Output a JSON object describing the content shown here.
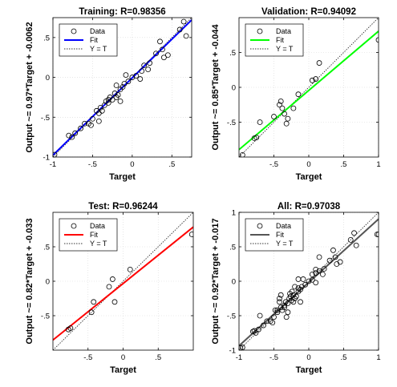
{
  "chart_data": [
    {
      "type": "scatter",
      "title": "Training: R=0.98356",
      "xlabel": "Target",
      "ylabel": "Output ~= 0.97*Target + -0.0062",
      "xlim": [
        -1,
        0.75
      ],
      "ylim": [
        -1,
        0.75
      ],
      "xticks": [
        -1,
        -0.5,
        0,
        0.5
      ],
      "yticks": [
        -1,
        -0.5,
        0,
        0.5
      ],
      "fit": {
        "slope": 0.97,
        "intercept": -0.0062,
        "color": "#0000ff"
      },
      "legend": {
        "position": "top-left",
        "entries": [
          "Data",
          "Fit",
          "Y = T"
        ]
      },
      "points": [
        [
          -0.98,
          -0.97
        ],
        [
          -0.8,
          -0.73
        ],
        [
          -0.76,
          -0.75
        ],
        [
          -0.72,
          -0.7
        ],
        [
          -0.65,
          -0.64
        ],
        [
          -0.6,
          -0.58
        ],
        [
          -0.55,
          -0.58
        ],
        [
          -0.52,
          -0.6
        ],
        [
          -0.5,
          -0.52
        ],
        [
          -0.45,
          -0.42
        ],
        [
          -0.42,
          -0.45
        ],
        [
          -0.4,
          -0.38
        ],
        [
          -0.38,
          -0.42
        ],
        [
          -0.35,
          -0.35
        ],
        [
          -0.33,
          -0.3
        ],
        [
          -0.3,
          -0.32
        ],
        [
          -0.28,
          -0.25
        ],
        [
          -0.25,
          -0.28
        ],
        [
          -0.22,
          -0.2
        ],
        [
          -0.2,
          -0.25
        ],
        [
          -0.18,
          -0.22
        ],
        [
          -0.15,
          -0.15
        ],
        [
          -0.15,
          -0.3
        ],
        [
          -0.12,
          -0.12
        ],
        [
          -0.1,
          -0.08
        ],
        [
          -0.08,
          0.03
        ],
        [
          -0.05,
          -0.05
        ],
        [
          0.0,
          0.0
        ],
        [
          0.05,
          0.02
        ],
        [
          0.1,
          -0.02
        ],
        [
          0.15,
          0.15
        ],
        [
          0.2,
          0.1
        ],
        [
          0.22,
          0.18
        ],
        [
          0.3,
          0.3
        ],
        [
          0.35,
          0.45
        ],
        [
          0.38,
          0.35
        ],
        [
          0.4,
          0.25
        ],
        [
          0.45,
          0.28
        ],
        [
          0.6,
          0.6
        ],
        [
          0.65,
          0.7
        ],
        [
          0.68,
          0.52
        ],
        [
          -0.42,
          -0.55
        ],
        [
          -0.3,
          -0.28
        ],
        [
          -0.2,
          -0.1
        ],
        [
          0.12,
          0.08
        ]
      ]
    },
    {
      "type": "scatter",
      "title": "Validation: R=0.94092",
      "xlabel": "Target",
      "ylabel": "Output ~= 0.85*Target + -0.044",
      "xlim": [
        -1,
        1
      ],
      "ylim": [
        -1,
        1
      ],
      "xticks": [
        -0.5,
        0,
        0.5,
        1
      ],
      "yticks": [
        -0.5,
        0,
        0.5
      ],
      "fit": {
        "slope": 0.85,
        "intercept": -0.044,
        "color": "#00ff00"
      },
      "legend": {
        "position": "top-left",
        "entries": [
          "Data",
          "Fit",
          "Y = T"
        ]
      },
      "points": [
        [
          -0.95,
          -0.97
        ],
        [
          -0.75,
          -0.72
        ],
        [
          -0.7,
          -0.5
        ],
        [
          -0.5,
          -0.42
        ],
        [
          -0.42,
          -0.25
        ],
        [
          -0.4,
          -0.2
        ],
        [
          -0.38,
          -0.3
        ],
        [
          -0.35,
          -0.38
        ],
        [
          -0.32,
          -0.52
        ],
        [
          -0.3,
          -0.45
        ],
        [
          -0.22,
          -0.3
        ],
        [
          -0.15,
          -0.1
        ],
        [
          0.05,
          0.1
        ],
        [
          0.1,
          0.12
        ],
        [
          0.15,
          0.35
        ],
        [
          1.0,
          0.68
        ],
        [
          -0.78,
          -0.73
        ]
      ]
    },
    {
      "type": "scatter",
      "title": "Test: R=0.96244",
      "xlabel": "Target",
      "ylabel": "Output ~= 0.82*Target + -0.033",
      "xlim": [
        -1,
        1
      ],
      "ylim": [
        -1,
        1
      ],
      "xticks": [
        -0.5,
        0,
        0.5
      ],
      "yticks": [
        -0.5,
        0,
        0.5
      ],
      "fit": {
        "slope": 0.82,
        "intercept": -0.033,
        "color": "#ff0000"
      },
      "legend": {
        "position": "top-left",
        "entries": [
          "Data",
          "Fit",
          "Y = T"
        ]
      },
      "points": [
        [
          -0.78,
          -0.7
        ],
        [
          -0.75,
          -0.68
        ],
        [
          -0.45,
          -0.45
        ],
        [
          -0.42,
          -0.3
        ],
        [
          -0.2,
          -0.08
        ],
        [
          -0.15,
          0.03
        ],
        [
          -0.12,
          -0.3
        ],
        [
          0.1,
          0.17
        ],
        [
          0.98,
          0.68
        ]
      ]
    },
    {
      "type": "scatter",
      "title": "All: R=0.97038",
      "xlabel": "Target",
      "ylabel": "Output ~= 0.92*Target + -0.017",
      "xlim": [
        -1,
        1
      ],
      "ylim": [
        -1,
        1
      ],
      "xticks": [
        -1,
        -0.5,
        0,
        0.5,
        1
      ],
      "yticks": [
        -1,
        -0.5,
        0,
        0.5,
        1
      ],
      "fit": {
        "slope": 0.92,
        "intercept": -0.017,
        "color": "#555555"
      },
      "legend": {
        "position": "top-left",
        "entries": [
          "Data",
          "Fit",
          "Y = T"
        ]
      },
      "points": [
        [
          -0.98,
          -0.97
        ],
        [
          -0.95,
          -0.96
        ],
        [
          -0.8,
          -0.73
        ],
        [
          -0.78,
          -0.72
        ],
        [
          -0.76,
          -0.75
        ],
        [
          -0.72,
          -0.7
        ],
        [
          -0.7,
          -0.5
        ],
        [
          -0.65,
          -0.64
        ],
        [
          -0.6,
          -0.58
        ],
        [
          -0.55,
          -0.58
        ],
        [
          -0.52,
          -0.6
        ],
        [
          -0.5,
          -0.52
        ],
        [
          -0.48,
          -0.42
        ],
        [
          -0.45,
          -0.45
        ],
        [
          -0.45,
          -0.42
        ],
        [
          -0.42,
          -0.3
        ],
        [
          -0.42,
          -0.25
        ],
        [
          -0.4,
          -0.2
        ],
        [
          -0.4,
          -0.38
        ],
        [
          -0.38,
          -0.42
        ],
        [
          -0.35,
          -0.35
        ],
        [
          -0.35,
          -0.38
        ],
        [
          -0.33,
          -0.3
        ],
        [
          -0.32,
          -0.52
        ],
        [
          -0.3,
          -0.32
        ],
        [
          -0.3,
          -0.45
        ],
        [
          -0.28,
          -0.25
        ],
        [
          -0.25,
          -0.28
        ],
        [
          -0.22,
          -0.2
        ],
        [
          -0.22,
          -0.3
        ],
        [
          -0.2,
          -0.25
        ],
        [
          -0.2,
          -0.08
        ],
        [
          -0.18,
          -0.22
        ],
        [
          -0.15,
          -0.15
        ],
        [
          -0.15,
          0.03
        ],
        [
          -0.15,
          -0.1
        ],
        [
          -0.12,
          -0.3
        ],
        [
          -0.12,
          -0.12
        ],
        [
          -0.1,
          -0.08
        ],
        [
          -0.08,
          0.03
        ],
        [
          -0.05,
          -0.05
        ],
        [
          0.0,
          0.0
        ],
        [
          0.05,
          0.1
        ],
        [
          0.05,
          0.02
        ],
        [
          0.1,
          0.17
        ],
        [
          0.1,
          0.12
        ],
        [
          0.1,
          -0.02
        ],
        [
          0.15,
          0.35
        ],
        [
          0.15,
          0.15
        ],
        [
          0.2,
          0.1
        ],
        [
          0.22,
          0.18
        ],
        [
          0.3,
          0.3
        ],
        [
          0.35,
          0.45
        ],
        [
          0.38,
          0.35
        ],
        [
          0.4,
          0.25
        ],
        [
          0.45,
          0.28
        ],
        [
          0.6,
          0.6
        ],
        [
          0.65,
          0.7
        ],
        [
          0.68,
          0.52
        ],
        [
          0.98,
          0.68
        ],
        [
          1.0,
          0.68
        ],
        [
          -0.27,
          -0.18
        ],
        [
          -0.24,
          -0.15
        ],
        [
          -0.26,
          -0.22
        ]
      ]
    }
  ],
  "legend_labels": {
    "data": "Data",
    "fit": "Fit",
    "yt": "Y = T"
  }
}
